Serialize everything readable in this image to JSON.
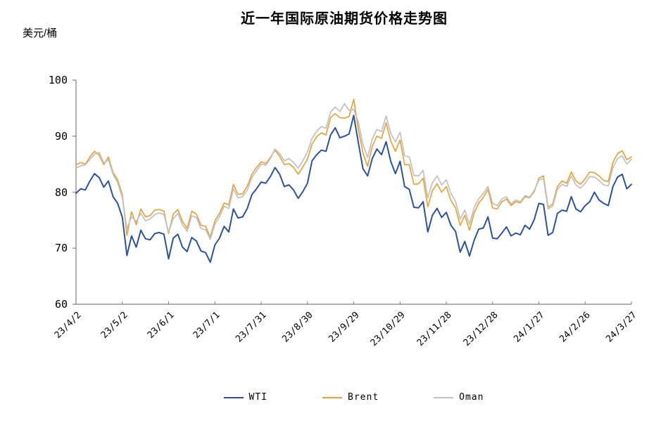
{
  "chart": {
    "unit_label": "美元/桶"
  },
  "colors": {
    "axis": "#7F7F7F",
    "text": "#000000",
    "background": "#FFFFFF",
    "wti": "#2B52A0",
    "brent": "#E8A33B",
    "oman": "#C0C0C0"
  },
  "chart_data": {
    "type": "line",
    "title": "近一年国际原油期货价格走势图",
    "ylabel": "美元/桶",
    "xlabel": "",
    "ylim": [
      60,
      100
    ],
    "y_ticks": [
      60,
      70,
      80,
      90,
      100
    ],
    "x_tick_labels": [
      "23/4/2",
      "23/5/2",
      "23/6/1",
      "23/7/1",
      "23/7/31",
      "23/8/30",
      "23/9/29",
      "23/10/29",
      "23/11/28",
      "23/12/28",
      "24/1/27",
      "24/2/26",
      "24/3/27"
    ],
    "grid": false,
    "legend_position": "bottom",
    "series": [
      {
        "name": "WTI",
        "color": "#2B52A0",
        "values": [
          79.8,
          80.6,
          80.4,
          82.0,
          83.3,
          82.6,
          80.9,
          82.0,
          79.2,
          78.0,
          75.5,
          68.7,
          72.2,
          70.2,
          73.2,
          71.7,
          71.5,
          72.6,
          72.8,
          72.5,
          68.1,
          71.8,
          72.5,
          70.2,
          69.4,
          71.9,
          71.3,
          69.5,
          69.2,
          67.5,
          70.6,
          71.8,
          73.9,
          72.9,
          77.0,
          75.4,
          75.6,
          77.1,
          79.6,
          80.6,
          81.8,
          81.6,
          82.8,
          84.4,
          83.2,
          81.0,
          81.3,
          80.4,
          78.9,
          80.1,
          81.6,
          85.6,
          86.7,
          87.5,
          87.3,
          90.2,
          91.5,
          89.7,
          90.0,
          90.4,
          93.7,
          88.8,
          84.2,
          82.9,
          86.0,
          87.7,
          86.7,
          89.0,
          85.5,
          83.3,
          85.5,
          81.0,
          80.5,
          77.3,
          77.2,
          78.3,
          72.9,
          75.9,
          77.1,
          75.5,
          76.4,
          74.1,
          73.0,
          69.3,
          71.2,
          68.6,
          71.4,
          73.4,
          73.6,
          75.6,
          71.8,
          71.7,
          72.7,
          73.8,
          72.2,
          72.7,
          72.4,
          74.1,
          73.4,
          75.1,
          78.0,
          77.8,
          72.3,
          72.8,
          76.2,
          76.8,
          76.6,
          79.2,
          77.0,
          76.5,
          77.6,
          78.3,
          80.0,
          78.6,
          78.0,
          77.6,
          81.0,
          82.7,
          83.2,
          80.6,
          81.4
        ]
      },
      {
        "name": "Brent",
        "color": "#E8A33B",
        "values": [
          84.9,
          85.3,
          85.0,
          86.3,
          87.3,
          86.6,
          84.9,
          86.3,
          83.5,
          82.2,
          79.5,
          72.3,
          76.5,
          74.2,
          77.0,
          75.6,
          75.8,
          76.8,
          76.9,
          76.6,
          72.6,
          76.1,
          76.9,
          74.8,
          73.5,
          76.6,
          76.1,
          74.1,
          73.9,
          72.0,
          74.9,
          76.2,
          78.1,
          77.7,
          81.4,
          79.6,
          79.7,
          81.1,
          83.2,
          84.4,
          85.4,
          85.1,
          86.2,
          87.5,
          86.4,
          84.9,
          85.1,
          84.4,
          83.2,
          84.5,
          85.9,
          88.6,
          89.9,
          90.6,
          90.2,
          93.3,
          94.0,
          93.3,
          93.2,
          93.5,
          96.6,
          91.2,
          87.0,
          84.6,
          88.2,
          90.0,
          89.6,
          92.4,
          89.1,
          87.3,
          89.3,
          84.9,
          84.9,
          81.4,
          81.5,
          82.5,
          77.4,
          80.3,
          81.5,
          80.0,
          81.0,
          78.5,
          77.2,
          74.1,
          75.9,
          73.2,
          76.3,
          78.0,
          79.1,
          80.5,
          77.2,
          77.0,
          78.3,
          78.8,
          77.6,
          78.3,
          78.1,
          79.2,
          79.0,
          80.1,
          82.5,
          82.9,
          77.3,
          77.9,
          81.0,
          82.0,
          81.6,
          83.6,
          82.0,
          81.4,
          82.4,
          83.6,
          83.5,
          82.9,
          82.1,
          81.9,
          85.3,
          86.9,
          87.4,
          85.8,
          86.3
        ]
      },
      {
        "name": "Oman",
        "color": "#C0C0C0",
        "values": [
          84.3,
          84.7,
          84.9,
          85.8,
          86.8,
          87.1,
          85.2,
          85.8,
          83.2,
          81.7,
          79.0,
          73.5,
          75.6,
          74.8,
          76.2,
          74.9,
          75.2,
          76.0,
          76.3,
          76.0,
          72.9,
          75.3,
          76.2,
          74.2,
          73.0,
          75.8,
          75.5,
          73.5,
          73.3,
          71.6,
          74.3,
          75.6,
          77.5,
          77.1,
          80.6,
          79.0,
          79.2,
          80.4,
          82.6,
          83.8,
          85.0,
          84.8,
          86.0,
          87.7,
          86.9,
          85.6,
          86.0,
          85.3,
          84.3,
          85.6,
          87.2,
          89.6,
          90.9,
          91.7,
          91.4,
          94.3,
          95.2,
          94.4,
          95.8,
          94.6,
          94.8,
          92.5,
          88.5,
          86.2,
          89.5,
          91.2,
          90.8,
          93.6,
          90.5,
          89.0,
          90.7,
          86.5,
          86.3,
          83.0,
          82.9,
          83.9,
          79.0,
          81.7,
          82.9,
          81.3,
          82.2,
          79.8,
          78.4,
          75.2,
          76.8,
          74.3,
          77.2,
          78.8,
          79.8,
          81.0,
          78.0,
          77.6,
          78.8,
          79.2,
          77.9,
          78.6,
          78.3,
          79.4,
          79.1,
          80.3,
          82.2,
          82.4,
          77.0,
          77.5,
          80.5,
          81.4,
          81.0,
          82.9,
          81.3,
          80.7,
          81.6,
          82.8,
          82.7,
          82.1,
          81.3,
          81.1,
          84.4,
          86.0,
          86.5,
          85.0,
          85.9
        ]
      }
    ]
  }
}
